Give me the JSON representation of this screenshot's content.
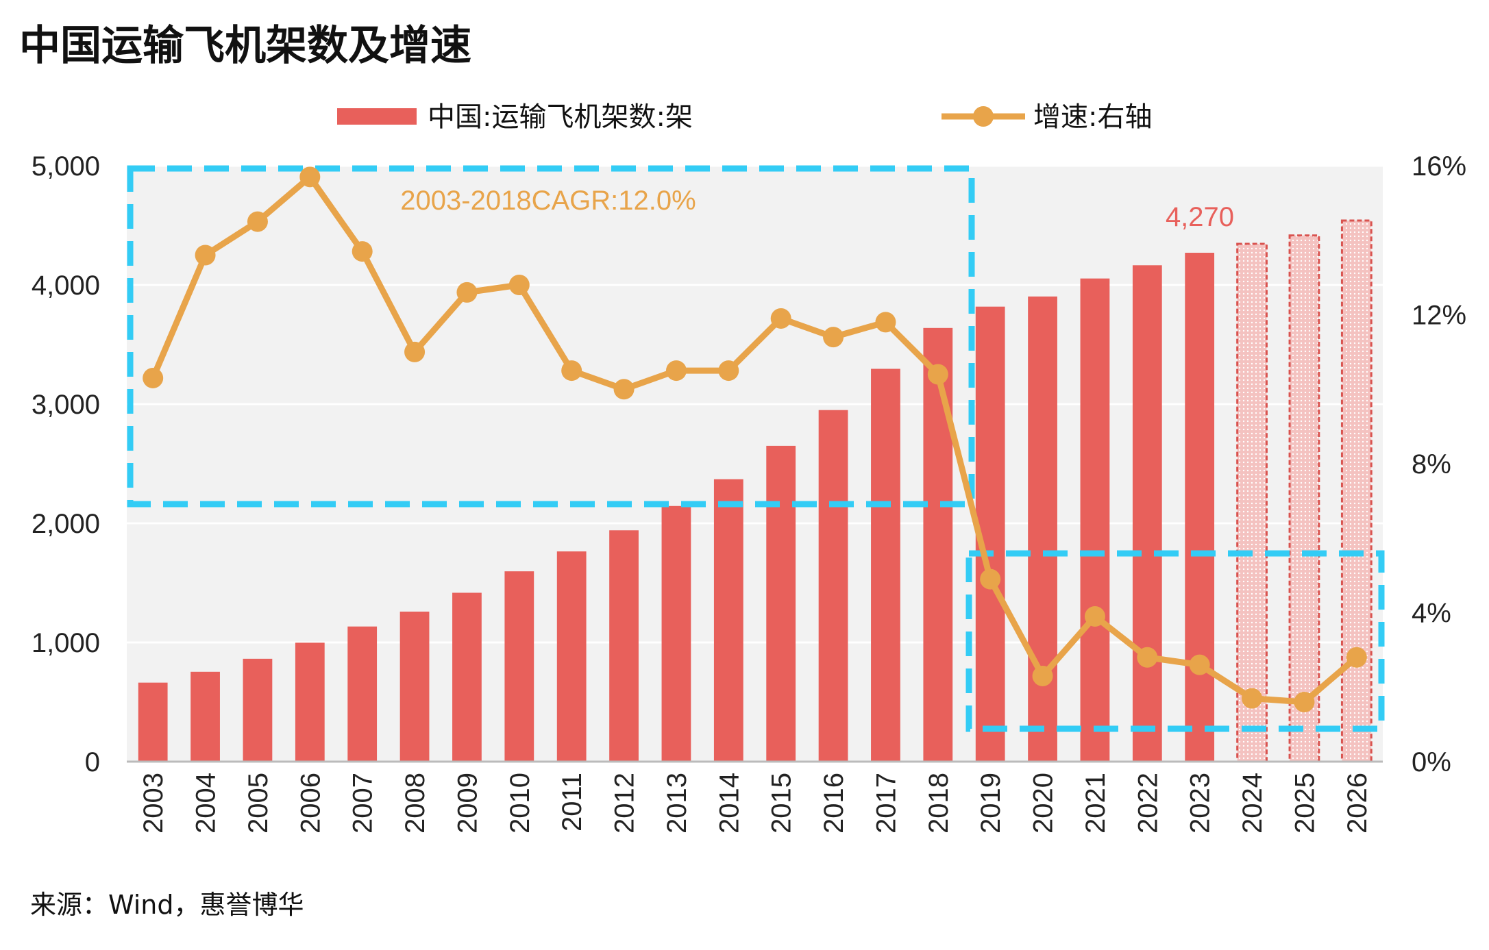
{
  "title": "中国运输飞机架数及增速",
  "source": "来源：Wind，惠誉博华",
  "colors": {
    "bar": "#E8605B",
    "bar_forecast_fill": "#F4C2C0",
    "bar_forecast_border": "#D9534F",
    "line": "#E8A44A",
    "annotation_box": "#33CCF5",
    "plot_bg": "#F2F2F2",
    "grid": "#FFFFFF",
    "cagr_text": "#E8A44A",
    "label_text": "#E8605B"
  },
  "chart_data": {
    "type": "bar",
    "categories": [
      "2003",
      "2004",
      "2005",
      "2006",
      "2007",
      "2008",
      "2009",
      "2010",
      "2011",
      "2012",
      "2013",
      "2014",
      "2015",
      "2016",
      "2017",
      "2018",
      "2019",
      "2020",
      "2021",
      "2022",
      "2023",
      "2024",
      "2025",
      "2026"
    ],
    "forecast_categories": [
      "2024",
      "2025",
      "2026"
    ],
    "series": [
      {
        "name": "中国:运输飞机架数:架",
        "type": "bar",
        "axis": "left",
        "values": [
          663,
          754,
          863,
          998,
          1134,
          1259,
          1417,
          1597,
          1764,
          1941,
          2145,
          2370,
          2650,
          2950,
          3296,
          3639,
          3818,
          3903,
          4054,
          4165,
          4270,
          4345,
          4415,
          4540
        ]
      },
      {
        "name": "增速:右轴",
        "type": "line",
        "axis": "right",
        "values": [
          10.3,
          13.6,
          14.5,
          15.7,
          13.7,
          11.0,
          12.6,
          12.8,
          10.5,
          10.0,
          10.5,
          10.5,
          11.9,
          11.4,
          11.8,
          10.4,
          4.9,
          2.3,
          3.9,
          2.8,
          2.6,
          1.7,
          1.6,
          2.8
        ]
      }
    ],
    "y_left": {
      "min": 0,
      "max": 5000,
      "ticks": [
        "0",
        "1,000",
        "2,000",
        "3,000",
        "4,000",
        "5,000"
      ]
    },
    "y_right": {
      "min": 0,
      "max": 16,
      "ticks": [
        "0%",
        "4%",
        "8%",
        "12%",
        "16%"
      ]
    },
    "legend": {
      "position": "top",
      "bar_label": "中国:运输飞机架数:架",
      "line_label": "增速:右轴"
    },
    "annotations": {
      "cagr": "2003-2018CAGR:12.0%",
      "bar_value_label": "4,270"
    }
  }
}
